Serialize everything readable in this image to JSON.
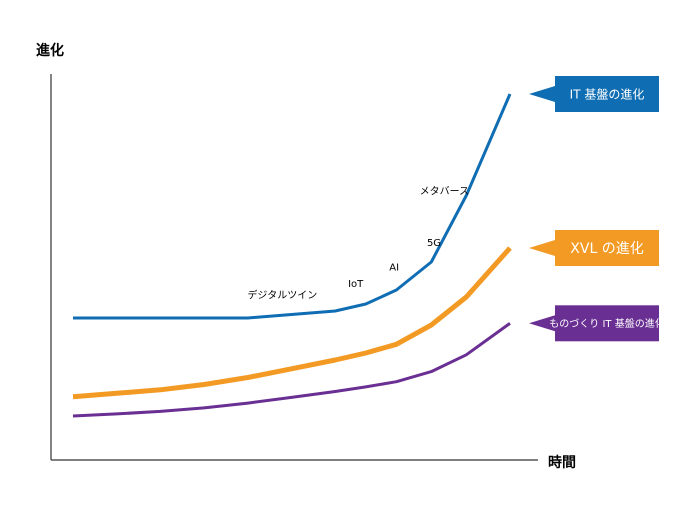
{
  "chart_data": {
    "type": "line",
    "title": "",
    "xlabel": "時間",
    "ylabel": "進化",
    "grid": false,
    "legend": "callouts at right end of each line",
    "xlim": [
      0,
      100
    ],
    "ylim": [
      0,
      100
    ],
    "x": [
      0,
      10,
      20,
      30,
      40,
      50,
      60,
      67,
      74,
      82,
      90,
      100
    ],
    "series": [
      {
        "name": "IT 基盤の進化",
        "color": "#0f6db3",
        "label_color": "#0f6db3",
        "y": [
          36,
          36,
          36,
          36,
          36,
          37,
          38,
          40,
          44,
          52,
          71,
          100
        ],
        "y_end": 100,
        "annotations": [
          {
            "text": "デジタルツイン",
            "x": 47.9,
            "y": 41.6
          },
          {
            "text": "IoT",
            "x": 64.7,
            "y": 44.9
          },
          {
            "text": "AI",
            "x": 73.5,
            "y": 49.6
          },
          {
            "text": "5G",
            "x": 82.6,
            "y": 56.6
          },
          {
            "text": "メタバース",
            "x": 85,
            "y": 71.3
          }
        ]
      },
      {
        "name": "XVL の進化",
        "color": "#f39a24",
        "label_color": "#f39a24",
        "y": [
          13.5,
          14.5,
          15.5,
          17,
          19,
          21.5,
          24,
          26,
          28.5,
          34,
          42,
          56
        ],
        "y_end": 56
      },
      {
        "name": "ものづくり IT 基盤の進化",
        "color": "#6a2f93",
        "label_color": "#6a2f93",
        "y": [
          8,
          8.6,
          9.3,
          10.3,
          11.7,
          13.3,
          15,
          16.3,
          17.8,
          20.7,
          25.5,
          34.5
        ],
        "y_end": 34.5
      }
    ]
  }
}
